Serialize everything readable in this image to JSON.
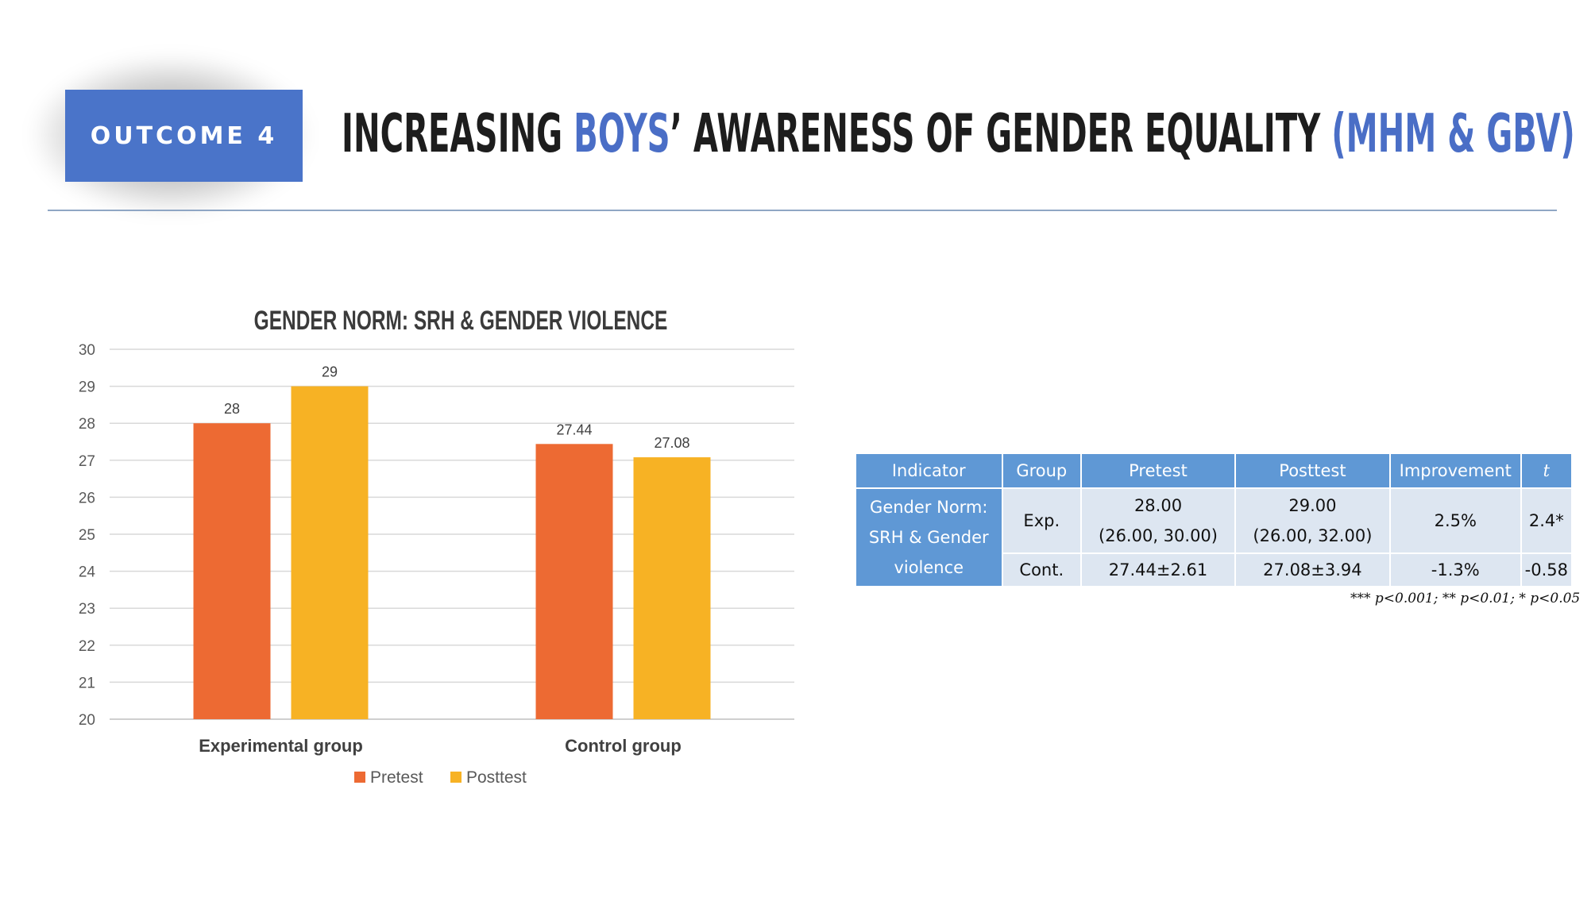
{
  "header": {
    "outcome_label": "OUTCOME 4",
    "title_part1": "INCREASING ",
    "title_part2": "BOYS",
    "title_part3": "’ AWARENESS OF GENDER EQUALITY ",
    "title_part4": "(MHM & GBV)",
    "accent_color": "#4a6ec6",
    "box_color": "#4a74c9"
  },
  "chart_data": {
    "type": "bar",
    "title": "GENDER NORM: SRH & GENDER VIOLENCE",
    "categories": [
      "Experimental group",
      "Control group"
    ],
    "series": [
      {
        "name": "Pretest",
        "values": [
          28,
          27.44
        ],
        "labels": [
          "28",
          "27.44"
        ],
        "color": "#ed6a33"
      },
      {
        "name": "Posttest",
        "values": [
          29,
          27.08
        ],
        "labels": [
          "29",
          "27.08"
        ],
        "color": "#f7b224"
      }
    ],
    "ylim": [
      20,
      30
    ],
    "yticks": [
      "20",
      "21",
      "22",
      "23",
      "24",
      "25",
      "26",
      "27",
      "28",
      "29",
      "30"
    ],
    "grid": true,
    "legend_position": "bottom"
  },
  "table": {
    "headers": [
      "Indicator",
      "Group",
      "Pretest",
      "Posttest",
      "Improvement",
      "t"
    ],
    "indicator_lines": [
      "Gender Norm:",
      "SRH & Gender",
      "violence"
    ],
    "rows": [
      {
        "group": "Exp.",
        "pretest": [
          "28.00",
          "(26.00, 30.00)"
        ],
        "posttest": [
          "29.00",
          "(26.00, 32.00)"
        ],
        "improvement": "2.5%",
        "t": "2.4*"
      },
      {
        "group": "Cont.",
        "pretest": [
          "27.44±2.61"
        ],
        "posttest": [
          "27.08±3.94"
        ],
        "improvement": "-1.3%",
        "t": "-0.58"
      }
    ],
    "footnote": "*** p<0.001; ** p<0.01; * p<0.05",
    "header_color": "#5f98d5",
    "cell_color": "#dde6f1"
  }
}
